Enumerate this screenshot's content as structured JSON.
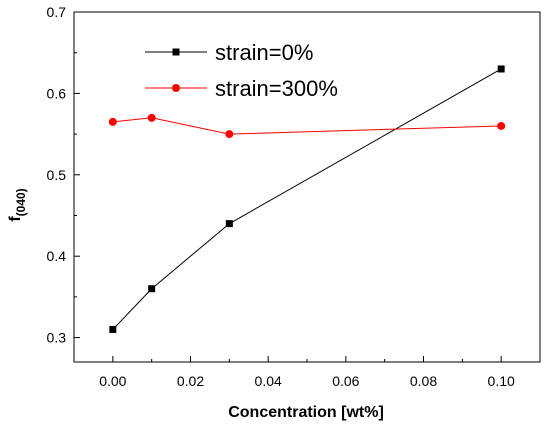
{
  "chart_data": {
    "type": "line",
    "xlabel": "Concentration [wt%]",
    "ylabel_main": "f",
    "ylabel_sub": "(040)",
    "xlim": [
      -0.01,
      0.11
    ],
    "ylim": [
      0.27,
      0.7
    ],
    "xticks": [
      0.0,
      0.02,
      0.04,
      0.06,
      0.08,
      0.1
    ],
    "xtick_labels": [
      "0.00",
      "0.02",
      "0.04",
      "0.06",
      "0.08",
      "0.10"
    ],
    "yticks": [
      0.3,
      0.4,
      0.5,
      0.6,
      0.7
    ],
    "ytick_labels": [
      "0.3",
      "0.4",
      "0.5",
      "0.6",
      "0.7"
    ],
    "grid": false,
    "legend_position": "top-center",
    "series": [
      {
        "name": "strain=0%",
        "color": "#000000",
        "marker": "square",
        "x": [
          0.0,
          0.01,
          0.03,
          0.1
        ],
        "y": [
          0.31,
          0.36,
          0.44,
          0.63
        ]
      },
      {
        "name": "strain=300%",
        "color": "#ff0000",
        "marker": "circle",
        "x": [
          0.0,
          0.01,
          0.03,
          0.1
        ],
        "y": [
          0.565,
          0.57,
          0.55,
          0.56
        ]
      }
    ]
  }
}
